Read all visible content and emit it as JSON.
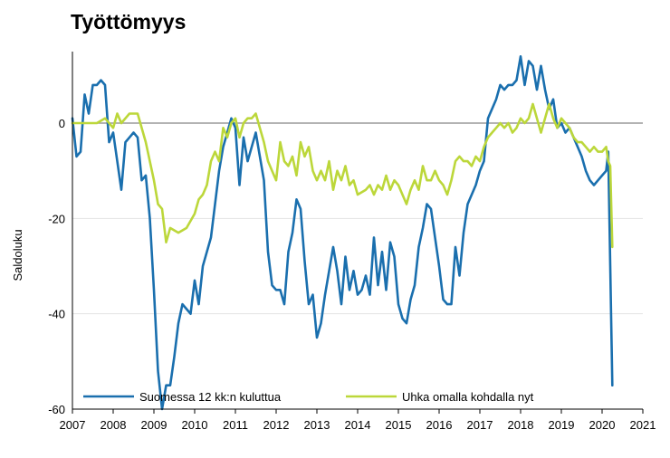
{
  "chart_data": {
    "type": "line",
    "title": "Työttömyys",
    "xlabel": "",
    "ylabel": "Saldoluku",
    "xlim": [
      2007,
      2021
    ],
    "ylim": [
      -60,
      15
    ],
    "x_ticks": [
      "2007",
      "2008",
      "2009",
      "2010",
      "2011",
      "2012",
      "2013",
      "2014",
      "2015",
      "2016",
      "2017",
      "2018",
      "2019",
      "2020",
      "2021"
    ],
    "y_ticks": [
      "0",
      "-20",
      "-40",
      "-60"
    ],
    "grid": "horizontal",
    "legend_position": "bottom",
    "series": [
      {
        "name": "Suomessa 12 kk:n kuluttua",
        "color": "#1a6fae",
        "points": [
          [
            2007.0,
            1
          ],
          [
            2007.1,
            -7
          ],
          [
            2007.2,
            -6
          ],
          [
            2007.3,
            6
          ],
          [
            2007.4,
            2
          ],
          [
            2007.5,
            8
          ],
          [
            2007.6,
            8
          ],
          [
            2007.7,
            9
          ],
          [
            2007.8,
            8
          ],
          [
            2007.9,
            -4
          ],
          [
            2008.0,
            -2
          ],
          [
            2008.1,
            -8
          ],
          [
            2008.2,
            -14
          ],
          [
            2008.3,
            -4
          ],
          [
            2008.4,
            -3
          ],
          [
            2008.5,
            -2
          ],
          [
            2008.6,
            -3
          ],
          [
            2008.7,
            -12
          ],
          [
            2008.8,
            -11
          ],
          [
            2008.9,
            -20
          ],
          [
            2009.0,
            -35
          ],
          [
            2009.1,
            -52
          ],
          [
            2009.2,
            -60
          ],
          [
            2009.3,
            -55
          ],
          [
            2009.4,
            -55
          ],
          [
            2009.5,
            -49
          ],
          [
            2009.6,
            -42
          ],
          [
            2009.7,
            -38
          ],
          [
            2009.8,
            -39
          ],
          [
            2009.9,
            -40
          ],
          [
            2010.0,
            -33
          ],
          [
            2010.1,
            -38
          ],
          [
            2010.2,
            -30
          ],
          [
            2010.3,
            -27
          ],
          [
            2010.4,
            -24
          ],
          [
            2010.5,
            -17
          ],
          [
            2010.6,
            -10
          ],
          [
            2010.7,
            -5
          ],
          [
            2010.8,
            -2
          ],
          [
            2010.9,
            1
          ],
          [
            2011.0,
            -1
          ],
          [
            2011.1,
            -13
          ],
          [
            2011.2,
            -3
          ],
          [
            2011.3,
            -8
          ],
          [
            2011.4,
            -5
          ],
          [
            2011.5,
            -2
          ],
          [
            2011.6,
            -7
          ],
          [
            2011.7,
            -12
          ],
          [
            2011.8,
            -27
          ],
          [
            2011.9,
            -34
          ],
          [
            2012.0,
            -35
          ],
          [
            2012.1,
            -35
          ],
          [
            2012.2,
            -38
          ],
          [
            2012.3,
            -27
          ],
          [
            2012.4,
            -23
          ],
          [
            2012.5,
            -16
          ],
          [
            2012.6,
            -18
          ],
          [
            2012.7,
            -29
          ],
          [
            2012.8,
            -38
          ],
          [
            2012.9,
            -36
          ],
          [
            2013.0,
            -45
          ],
          [
            2013.1,
            -42
          ],
          [
            2013.2,
            -36
          ],
          [
            2013.3,
            -31
          ],
          [
            2013.4,
            -26
          ],
          [
            2013.5,
            -31
          ],
          [
            2013.6,
            -38
          ],
          [
            2013.7,
            -28
          ],
          [
            2013.8,
            -35
          ],
          [
            2013.9,
            -31
          ],
          [
            2014.0,
            -36
          ],
          [
            2014.1,
            -35
          ],
          [
            2014.2,
            -32
          ],
          [
            2014.3,
            -36
          ],
          [
            2014.4,
            -24
          ],
          [
            2014.5,
            -34
          ],
          [
            2014.6,
            -27
          ],
          [
            2014.7,
            -35
          ],
          [
            2014.8,
            -25
          ],
          [
            2014.9,
            -28
          ],
          [
            2015.0,
            -38
          ],
          [
            2015.1,
            -41
          ],
          [
            2015.2,
            -42
          ],
          [
            2015.3,
            -37
          ],
          [
            2015.4,
            -34
          ],
          [
            2015.5,
            -26
          ],
          [
            2015.6,
            -22
          ],
          [
            2015.7,
            -17
          ],
          [
            2015.8,
            -18
          ],
          [
            2015.9,
            -24
          ],
          [
            2016.0,
            -30
          ],
          [
            2016.1,
            -37
          ],
          [
            2016.2,
            -38
          ],
          [
            2016.3,
            -38
          ],
          [
            2016.4,
            -26
          ],
          [
            2016.5,
            -32
          ],
          [
            2016.6,
            -23
          ],
          [
            2016.7,
            -17
          ],
          [
            2016.8,
            -15
          ],
          [
            2016.9,
            -13
          ],
          [
            2017.0,
            -10
          ],
          [
            2017.1,
            -8
          ],
          [
            2017.2,
            1
          ],
          [
            2017.3,
            3
          ],
          [
            2017.4,
            5
          ],
          [
            2017.5,
            8
          ],
          [
            2017.6,
            7
          ],
          [
            2017.7,
            8
          ],
          [
            2017.8,
            8
          ],
          [
            2017.9,
            9
          ],
          [
            2018.0,
            14
          ],
          [
            2018.1,
            8
          ],
          [
            2018.2,
            13
          ],
          [
            2018.3,
            12
          ],
          [
            2018.4,
            7
          ],
          [
            2018.5,
            12
          ],
          [
            2018.6,
            7
          ],
          [
            2018.7,
            3
          ],
          [
            2018.8,
            5
          ],
          [
            2018.9,
            -1
          ],
          [
            2019.0,
            0
          ],
          [
            2019.1,
            -2
          ],
          [
            2019.2,
            -1
          ],
          [
            2019.3,
            -3
          ],
          [
            2019.4,
            -5
          ],
          [
            2019.5,
            -7
          ],
          [
            2019.6,
            -10
          ],
          [
            2019.7,
            -12
          ],
          [
            2019.8,
            -13
          ],
          [
            2019.9,
            -12
          ],
          [
            2020.0,
            -11
          ],
          [
            2020.1,
            -10
          ],
          [
            2020.15,
            -6
          ],
          [
            2020.2,
            -30
          ],
          [
            2020.25,
            -55
          ]
        ]
      },
      {
        "name": "Uhka omalla kohdalla nyt",
        "color": "#bcd73a",
        "points": [
          [
            2007.0,
            0
          ],
          [
            2007.2,
            0
          ],
          [
            2007.4,
            0
          ],
          [
            2007.6,
            0
          ],
          [
            2007.8,
            1
          ],
          [
            2008.0,
            -1
          ],
          [
            2008.1,
            2
          ],
          [
            2008.2,
            0
          ],
          [
            2008.4,
            2
          ],
          [
            2008.6,
            2
          ],
          [
            2008.8,
            -4
          ],
          [
            2009.0,
            -12
          ],
          [
            2009.1,
            -17
          ],
          [
            2009.2,
            -18
          ],
          [
            2009.3,
            -25
          ],
          [
            2009.4,
            -22
          ],
          [
            2009.6,
            -23
          ],
          [
            2009.8,
            -22
          ],
          [
            2010.0,
            -19
          ],
          [
            2010.1,
            -16
          ],
          [
            2010.2,
            -15
          ],
          [
            2010.3,
            -13
          ],
          [
            2010.4,
            -8
          ],
          [
            2010.5,
            -6
          ],
          [
            2010.6,
            -8
          ],
          [
            2010.7,
            -1
          ],
          [
            2010.8,
            -3
          ],
          [
            2010.9,
            0
          ],
          [
            2011.0,
            1
          ],
          [
            2011.1,
            -3
          ],
          [
            2011.2,
            0
          ],
          [
            2011.3,
            1
          ],
          [
            2011.4,
            1
          ],
          [
            2011.5,
            2
          ],
          [
            2011.6,
            -1
          ],
          [
            2011.7,
            -4
          ],
          [
            2011.8,
            -8
          ],
          [
            2011.9,
            -10
          ],
          [
            2012.0,
            -12
          ],
          [
            2012.1,
            -4
          ],
          [
            2012.2,
            -8
          ],
          [
            2012.3,
            -9
          ],
          [
            2012.4,
            -7
          ],
          [
            2012.5,
            -11
          ],
          [
            2012.6,
            -4
          ],
          [
            2012.7,
            -7
          ],
          [
            2012.8,
            -5
          ],
          [
            2012.9,
            -10
          ],
          [
            2013.0,
            -12
          ],
          [
            2013.1,
            -10
          ],
          [
            2013.2,
            -12
          ],
          [
            2013.3,
            -8
          ],
          [
            2013.4,
            -14
          ],
          [
            2013.5,
            -10
          ],
          [
            2013.6,
            -12
          ],
          [
            2013.7,
            -9
          ],
          [
            2013.8,
            -13
          ],
          [
            2013.9,
            -12
          ],
          [
            2014.0,
            -15
          ],
          [
            2014.2,
            -14
          ],
          [
            2014.3,
            -13
          ],
          [
            2014.4,
            -15
          ],
          [
            2014.5,
            -13
          ],
          [
            2014.6,
            -14
          ],
          [
            2014.7,
            -11
          ],
          [
            2014.8,
            -14
          ],
          [
            2014.9,
            -12
          ],
          [
            2015.0,
            -13
          ],
          [
            2015.1,
            -15
          ],
          [
            2015.2,
            -17
          ],
          [
            2015.3,
            -14
          ],
          [
            2015.4,
            -12
          ],
          [
            2015.5,
            -14
          ],
          [
            2015.6,
            -9
          ],
          [
            2015.7,
            -12
          ],
          [
            2015.8,
            -12
          ],
          [
            2015.9,
            -10
          ],
          [
            2016.0,
            -12
          ],
          [
            2016.1,
            -13
          ],
          [
            2016.2,
            -15
          ],
          [
            2016.3,
            -12
          ],
          [
            2016.4,
            -8
          ],
          [
            2016.5,
            -7
          ],
          [
            2016.6,
            -8
          ],
          [
            2016.7,
            -8
          ],
          [
            2016.8,
            -9
          ],
          [
            2016.9,
            -7
          ],
          [
            2017.0,
            -8
          ],
          [
            2017.1,
            -5
          ],
          [
            2017.2,
            -3
          ],
          [
            2017.3,
            -2
          ],
          [
            2017.4,
            -1
          ],
          [
            2017.5,
            0
          ],
          [
            2017.6,
            -1
          ],
          [
            2017.7,
            0
          ],
          [
            2017.8,
            -2
          ],
          [
            2017.9,
            -1
          ],
          [
            2018.0,
            1
          ],
          [
            2018.1,
            0
          ],
          [
            2018.2,
            1
          ],
          [
            2018.3,
            4
          ],
          [
            2018.4,
            1
          ],
          [
            2018.5,
            -2
          ],
          [
            2018.6,
            1
          ],
          [
            2018.7,
            4
          ],
          [
            2018.8,
            1
          ],
          [
            2018.9,
            -1
          ],
          [
            2019.0,
            1
          ],
          [
            2019.1,
            0
          ],
          [
            2019.2,
            -1
          ],
          [
            2019.3,
            -3
          ],
          [
            2019.4,
            -4
          ],
          [
            2019.5,
            -4
          ],
          [
            2019.6,
            -5
          ],
          [
            2019.7,
            -6
          ],
          [
            2019.8,
            -5
          ],
          [
            2019.9,
            -6
          ],
          [
            2020.0,
            -6
          ],
          [
            2020.1,
            -5
          ],
          [
            2020.15,
            -8
          ],
          [
            2020.2,
            -9
          ],
          [
            2020.25,
            -26
          ]
        ]
      }
    ]
  }
}
